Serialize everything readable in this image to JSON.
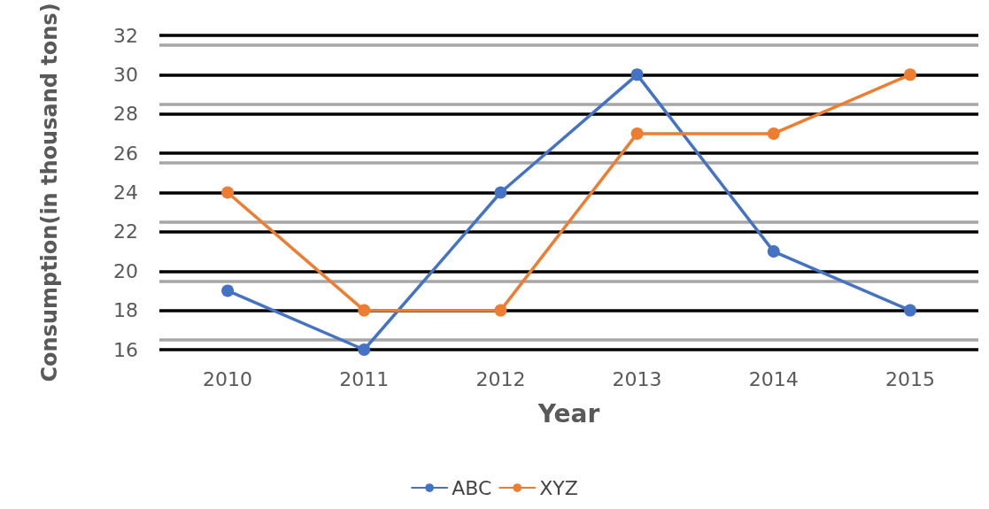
{
  "chart_data": {
    "type": "line",
    "xlabel": "Year",
    "ylabel": "Consumption(in thousand tons)",
    "categories": [
      "2010",
      "2011",
      "2012",
      "2013",
      "2014",
      "2015"
    ],
    "series": [
      {
        "name": "ABC",
        "color": "#4472c4",
        "values": [
          19,
          16,
          24,
          30,
          21,
          18
        ]
      },
      {
        "name": "XYZ",
        "color": "#ed7d31",
        "values": [
          24,
          18,
          18,
          27,
          27,
          30
        ]
      }
    ],
    "ylim": [
      16,
      32
    ],
    "yticks": [
      16,
      18,
      20,
      22,
      24,
      26,
      28,
      30,
      32
    ],
    "grid": "y",
    "legend": "bottom",
    "marker": "circle",
    "line_style": "solid"
  }
}
